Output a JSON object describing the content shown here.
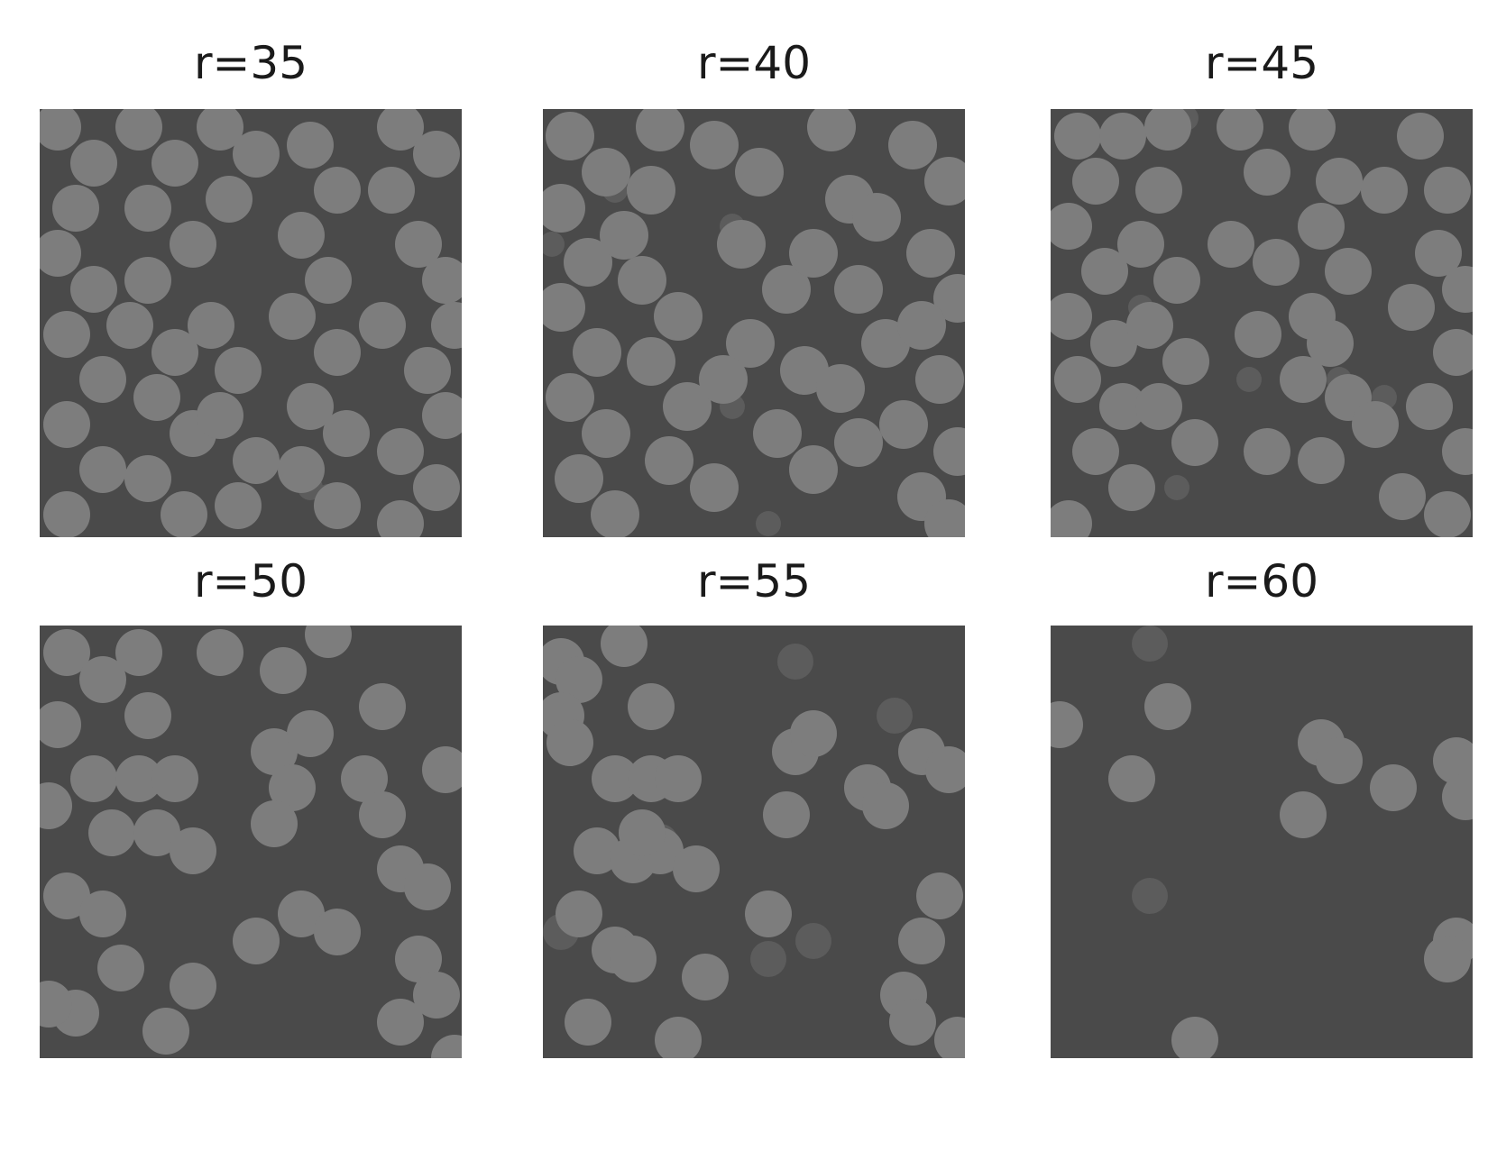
{
  "figure": {
    "panels": [
      {
        "title": "r=35",
        "coverage": "high"
      },
      {
        "title": "r=40",
        "coverage": "medium-high"
      },
      {
        "title": "r=45",
        "coverage": "medium"
      },
      {
        "title": "r=50",
        "coverage": "medium-low"
      },
      {
        "title": "r=55",
        "coverage": "low"
      },
      {
        "title": "r=60",
        "coverage": "very-low"
      }
    ],
    "colors": {
      "background": "#4a4a4a",
      "blob": "#7d7d7d",
      "faint_blob": "#5c5c5c"
    }
  }
}
